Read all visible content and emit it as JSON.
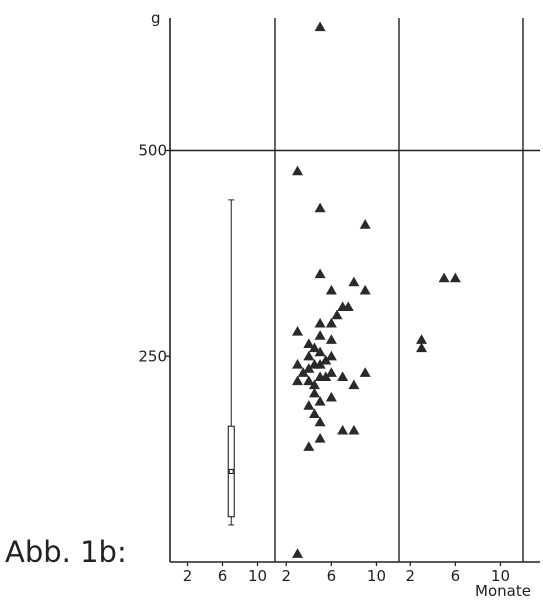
{
  "caption": "Abb. 1b:",
  "chart_data": {
    "type": "scatter",
    "y_unit_label": "g",
    "x_unit_label": "Monate",
    "ylim": [
      0,
      1300
    ],
    "y_ticks": [
      250,
      500,
      750,
      1000,
      1250
    ],
    "y_grid_values": [
      500,
      1000
    ],
    "panels": [
      {
        "xlim": [
          0,
          12
        ],
        "x_ticks": [
          2,
          6,
          10
        ],
        "boxplot": {
          "x": 7,
          "whisker_low": 45,
          "q1": 55,
          "median": 110,
          "q3": 165,
          "whisker_high": 440
        },
        "points": []
      },
      {
        "xlim": [
          1,
          12
        ],
        "x_ticks": [
          2,
          6,
          10
        ],
        "points": [
          [
            3,
            475
          ],
          [
            3,
            10
          ],
          [
            5,
            650
          ],
          [
            5,
            430
          ],
          [
            5,
            350
          ],
          [
            9,
            410
          ],
          [
            3,
            280
          ],
          [
            3,
            240
          ],
          [
            3,
            220
          ],
          [
            3.5,
            230
          ],
          [
            4,
            265
          ],
          [
            4,
            250
          ],
          [
            4,
            235
          ],
          [
            4,
            220
          ],
          [
            4,
            190
          ],
          [
            4,
            140
          ],
          [
            4.5,
            260
          ],
          [
            4.5,
            240
          ],
          [
            4.5,
            215
          ],
          [
            4.5,
            205
          ],
          [
            4.5,
            180
          ],
          [
            5,
            290
          ],
          [
            5,
            275
          ],
          [
            5,
            255
          ],
          [
            5,
            240
          ],
          [
            5,
            225
          ],
          [
            5,
            195
          ],
          [
            5,
            170
          ],
          [
            5,
            150
          ],
          [
            5.5,
            245
          ],
          [
            5.5,
            225
          ],
          [
            6,
            330
          ],
          [
            6,
            290
          ],
          [
            6,
            270
          ],
          [
            6,
            250
          ],
          [
            6,
            230
          ],
          [
            6.5,
            300
          ],
          [
            7,
            310
          ],
          [
            7,
            225
          ],
          [
            7,
            160
          ],
          [
            7.5,
            310
          ],
          [
            8,
            340
          ],
          [
            8,
            215
          ],
          [
            8,
            160
          ],
          [
            9,
            330
          ],
          [
            9,
            230
          ],
          [
            6,
            200
          ]
        ]
      },
      {
        "xlim": [
          1,
          12
        ],
        "x_ticks": [
          2,
          6,
          10
        ],
        "points": [
          [
            3,
            270
          ],
          [
            3,
            260
          ],
          [
            5,
            345
          ],
          [
            6,
            345
          ]
        ]
      }
    ]
  }
}
